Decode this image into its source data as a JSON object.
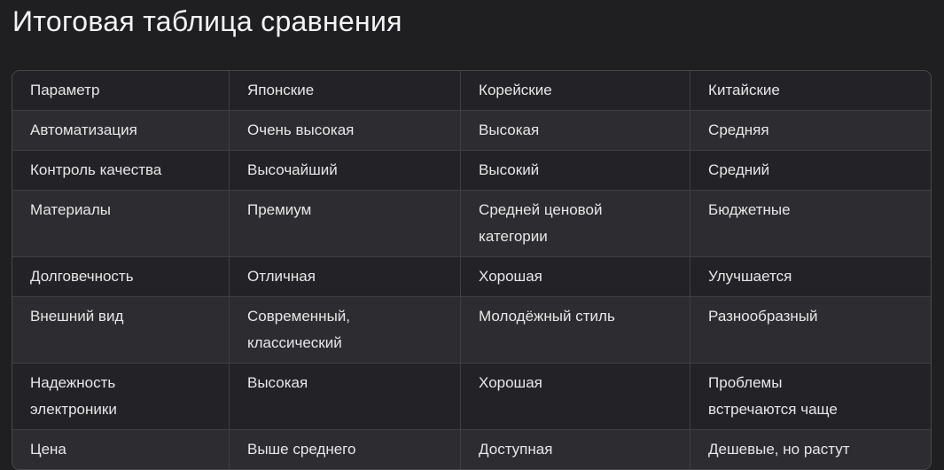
{
  "title": "Итоговая таблица сравнения",
  "colors": {
    "page_background": "#1f1f21",
    "row_light": "#2d2d31",
    "row_dark": "#232327",
    "border": "#3e3e43",
    "outer_border": "#47474c",
    "text": "#e7e7e9",
    "title_text": "#f3f3f4"
  },
  "table": {
    "headers": [
      "Параметр",
      "Японские",
      "Корейские",
      "Китайские"
    ],
    "rows": [
      [
        "Автоматизация",
        "Очень высокая",
        "Высокая",
        "Средняя"
      ],
      [
        "Контроль качества",
        "Высочайший",
        "Высокий",
        "Средний"
      ],
      [
        "Материалы",
        "Премиум",
        "Средней ценовой\nкатегории",
        "Бюджетные"
      ],
      [
        "Долговечность",
        "Отличная",
        "Хорошая",
        "Улучшается"
      ],
      [
        "Внешний вид",
        "Современный,\nклассический",
        "Молодёжный стиль",
        "Разнообразный"
      ],
      [
        "Надежность\nэлектроники",
        "Высокая",
        "Хорошая",
        "Проблемы\nвстречаются чаще"
      ],
      [
        "Цена",
        "Выше среднего",
        "Доступная",
        "Дешевые, но растут"
      ]
    ]
  },
  "chart_data": {
    "type": "table",
    "title": "Итоговая таблица сравнения",
    "columns": [
      "Параметр",
      "Японские",
      "Корейские",
      "Китайские"
    ],
    "rows": [
      [
        "Автоматизация",
        "Очень высокая",
        "Высокая",
        "Средняя"
      ],
      [
        "Контроль качества",
        "Высочайший",
        "Высокий",
        "Средний"
      ],
      [
        "Материалы",
        "Премиум",
        "Средней ценовой категории",
        "Бюджетные"
      ],
      [
        "Долговечность",
        "Отличная",
        "Хорошая",
        "Улучшается"
      ],
      [
        "Внешний вид",
        "Современный, классический",
        "Молодёжный стиль",
        "Разнообразный"
      ],
      [
        "Надежность электроники",
        "Высокая",
        "Хорошая",
        "Проблемы встречаются чаще"
      ],
      [
        "Цена",
        "Выше среднего",
        "Доступная",
        "Дешевые, но растут"
      ]
    ]
  }
}
